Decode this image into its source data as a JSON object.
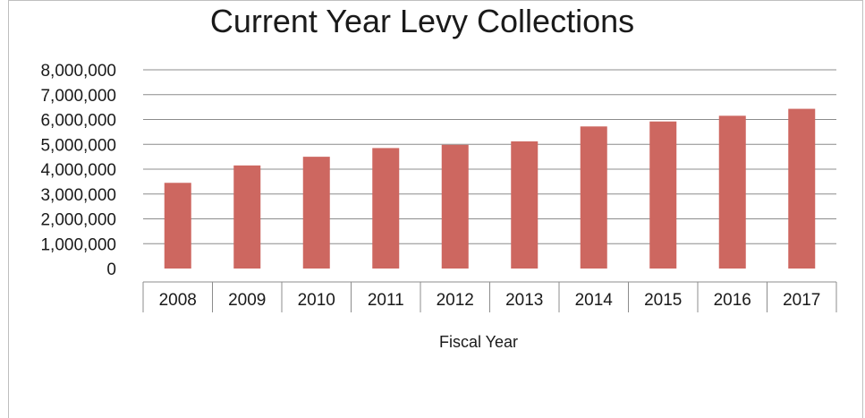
{
  "chart_data": {
    "type": "bar",
    "title": "Current Year Levy Collections",
    "xlabel": "Fiscal Year",
    "ylabel": "",
    "categories": [
      "2008",
      "2009",
      "2010",
      "2011",
      "2012",
      "2013",
      "2014",
      "2015",
      "2016",
      "2017"
    ],
    "values": [
      3450000,
      4150000,
      4500000,
      4850000,
      4980000,
      5120000,
      5720000,
      5920000,
      6150000,
      6430000
    ],
    "yticks": [
      "0",
      "1,000,000",
      "2,000,000",
      "3,000,000",
      "4,000,000",
      "5,000,000",
      "6,000,000",
      "7,000,000",
      "8,000,000"
    ],
    "ylim": [
      0,
      8000000
    ],
    "grid": true,
    "legend": "none",
    "bar_color": "#cd6760"
  }
}
